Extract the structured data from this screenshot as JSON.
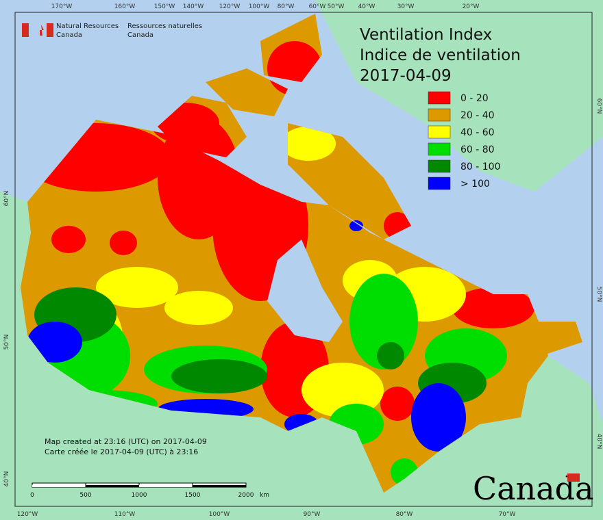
{
  "header": {
    "agency_en": [
      "Natural Resources",
      "Canada"
    ],
    "agency_fr": [
      "Ressources naturelles",
      "Canada"
    ]
  },
  "title": [
    "Ventilation Index",
    "Indice de ventilation",
    "2017-04-09"
  ],
  "legend": [
    {
      "label": "0 - 20",
      "color": "#ff0000"
    },
    {
      "label": "20 - 40",
      "color": "#dd9900"
    },
    {
      "label": "40 - 60",
      "color": "#ffff00"
    },
    {
      "label": "60 - 80",
      "color": "#00dd00"
    },
    {
      "label": "80 - 100",
      "color": "#008800"
    },
    {
      "label": "> 100",
      "color": "#0000ff"
    }
  ],
  "graticule": {
    "top": [
      "170°W",
      "160°W",
      "150°W",
      "140°W",
      "120°W",
      "100°W",
      "80°W",
      "60°W",
      "50°W",
      "40°W",
      "30°W",
      "20°W"
    ],
    "bottom": [
      "120°W",
      "110°W",
      "100°W",
      "90°W",
      "80°W",
      "70°W"
    ],
    "left": [
      "60°N",
      "50°N",
      "40°N"
    ],
    "right": [
      "60°N",
      "50°N",
      "40°N"
    ]
  },
  "notes": [
    "Map created at 23:16 (UTC) on 2017-04-09",
    "Carte créée le 2017-04-09 (UTC) à 23:16"
  ],
  "scale_bar": {
    "labels": [
      "0",
      "500",
      "1000",
      "1500",
      "2000"
    ],
    "unit": "km"
  },
  "wordmark": "Canada"
}
